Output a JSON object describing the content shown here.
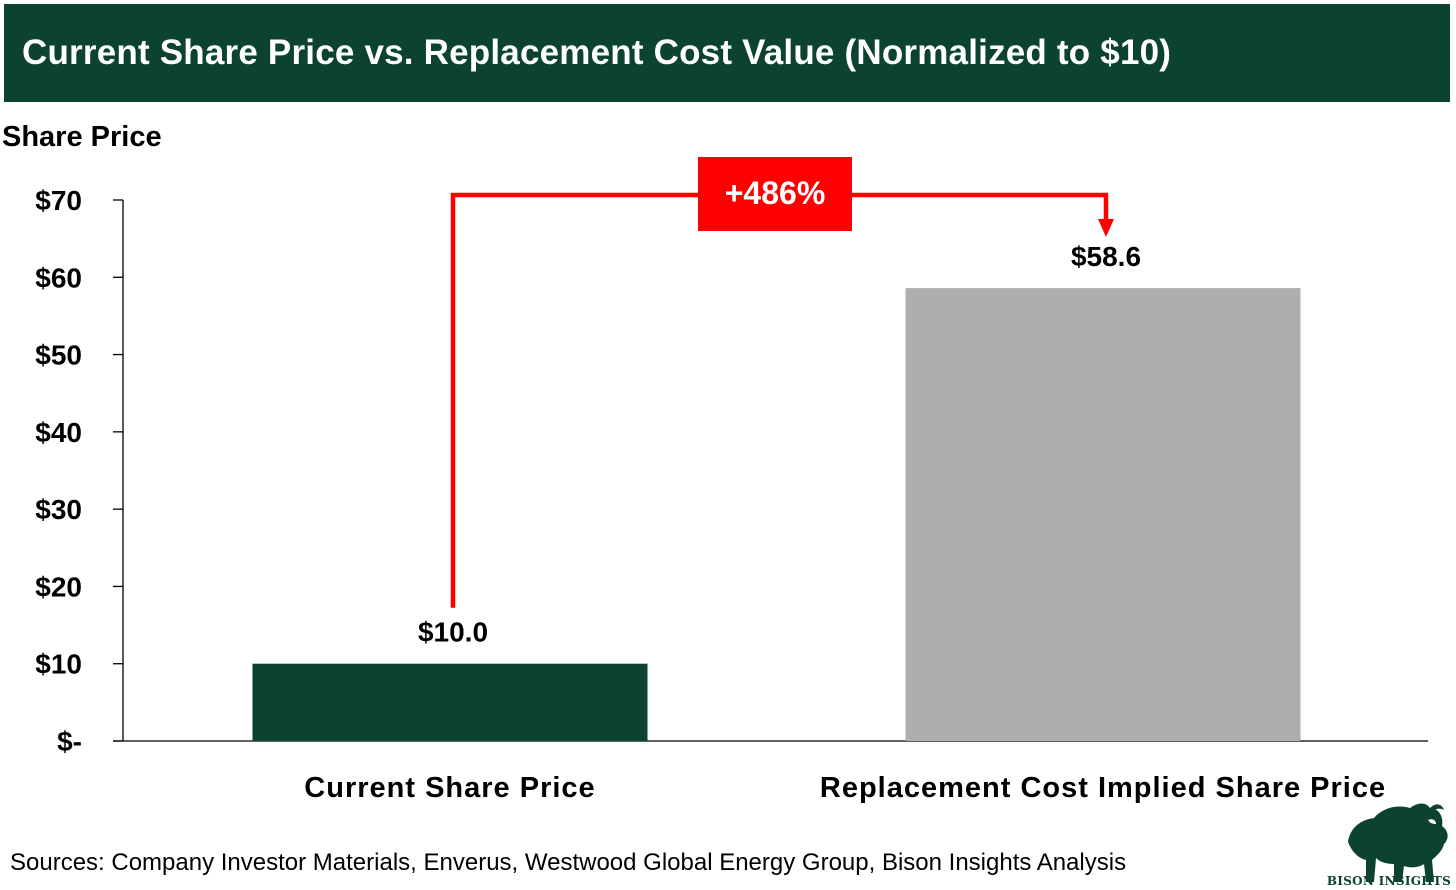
{
  "header": {
    "title": "Current Share Price vs. Replacement Cost Value (Normalized to $10)"
  },
  "footer": {
    "sources": "Sources: Company Investor Materials, Enverus, Westwood Global Energy Group, Bison Insights Analysis"
  },
  "logo": {
    "name": "bison-icon",
    "text": "BISON INSIGHTS"
  },
  "chart_data": {
    "type": "bar",
    "title": "Current Share Price vs. Replacement Cost Value (Normalized to $10)",
    "ylabel": "Share Price",
    "xlabel": "",
    "categories": [
      "Current Share Price",
      "Replacement Cost Implied Share Price"
    ],
    "values": [
      10.0,
      58.6
    ],
    "data_labels": [
      "$10.0",
      "$58.6"
    ],
    "colors": [
      "#0b4230",
      "#aeaeae"
    ],
    "ylim": [
      0,
      70
    ],
    "yticks": [
      0,
      10,
      20,
      30,
      40,
      50,
      60,
      70
    ],
    "ytick_labels": [
      "$-",
      "$10",
      "$20",
      "$30",
      "$40",
      "$50",
      "$60",
      "$70"
    ],
    "grid": false,
    "legend": "none",
    "annotation": {
      "text": "+486%",
      "from_category": 0,
      "to_category": 1,
      "color": "#ff0000"
    }
  }
}
